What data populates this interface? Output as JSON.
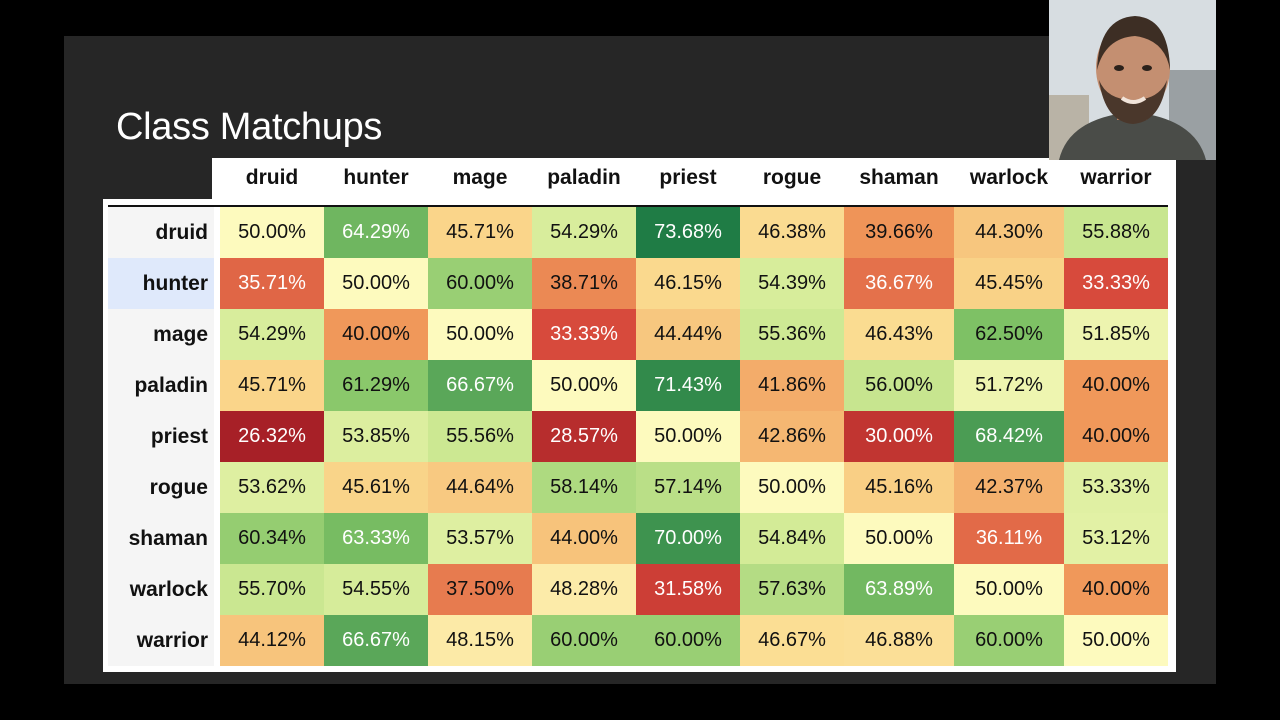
{
  "slide": {
    "title": "Class Matchups"
  },
  "webcam": {
    "icon": "person-webcam"
  },
  "table": {
    "columns": [
      "druid",
      "hunter",
      "mage",
      "paladin",
      "priest",
      "rogue",
      "shaman",
      "warlock",
      "warrior"
    ],
    "rows": [
      {
        "label": "druid",
        "values": [
          "50.00%",
          "64.29%",
          "45.71%",
          "54.29%",
          "73.68%",
          "46.38%",
          "39.66%",
          "44.30%",
          "55.88%"
        ]
      },
      {
        "label": "hunter",
        "values": [
          "35.71%",
          "50.00%",
          "60.00%",
          "38.71%",
          "46.15%",
          "54.39%",
          "36.67%",
          "45.45%",
          "33.33%"
        ]
      },
      {
        "label": "mage",
        "values": [
          "54.29%",
          "40.00%",
          "50.00%",
          "33.33%",
          "44.44%",
          "55.36%",
          "46.43%",
          "62.50%",
          "51.85%"
        ]
      },
      {
        "label": "paladin",
        "values": [
          "45.71%",
          "61.29%",
          "66.67%",
          "50.00%",
          "71.43%",
          "41.86%",
          "56.00%",
          "51.72%",
          "40.00%"
        ]
      },
      {
        "label": "priest",
        "values": [
          "26.32%",
          "53.85%",
          "55.56%",
          "28.57%",
          "50.00%",
          "42.86%",
          "30.00%",
          "68.42%",
          "40.00%"
        ]
      },
      {
        "label": "rogue",
        "values": [
          "53.62%",
          "45.61%",
          "44.64%",
          "58.14%",
          "57.14%",
          "50.00%",
          "45.16%",
          "42.37%",
          "53.33%"
        ]
      },
      {
        "label": "shaman",
        "values": [
          "60.34%",
          "63.33%",
          "53.57%",
          "44.00%",
          "70.00%",
          "54.84%",
          "50.00%",
          "36.11%",
          "53.12%"
        ]
      },
      {
        "label": "warlock",
        "values": [
          "55.70%",
          "54.55%",
          "37.50%",
          "48.28%",
          "31.58%",
          "57.63%",
          "63.89%",
          "50.00%",
          "40.00%"
        ]
      },
      {
        "label": "warrior",
        "values": [
          "44.12%",
          "66.67%",
          "48.15%",
          "60.00%",
          "60.00%",
          "46.67%",
          "46.88%",
          "60.00%",
          "50.00%"
        ]
      }
    ]
  }
}
